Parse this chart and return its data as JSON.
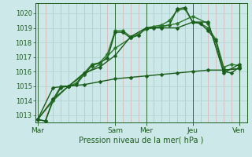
{
  "xlabel": "Pression niveau de la mer( hPa )",
  "background_color": "#cce8e8",
  "grid_color_h": "#b0d0d0",
  "grid_color_v_minor": "#e0b0b0",
  "grid_color_v_major": "#336633",
  "line_color_dark": "#1a5c1a",
  "line_color_mid": "#2d8c2d",
  "tick_labels": [
    "Mar",
    "Sam",
    "Mer",
    "Jeu",
    "Ven"
  ],
  "tick_positions": [
    0,
    10,
    14,
    20,
    26
  ],
  "xlim": [
    -0.3,
    27.0
  ],
  "ylim": [
    1012.5,
    1020.7
  ],
  "yticks": [
    1013,
    1014,
    1015,
    1016,
    1017,
    1018,
    1019,
    1020
  ],
  "series": [
    {
      "x": [
        0,
        1,
        2,
        3,
        4,
        5,
        6,
        7,
        8,
        9,
        10,
        11,
        12,
        13,
        14,
        15,
        16,
        17,
        18,
        19,
        20,
        21,
        22,
        23,
        24,
        25,
        26
      ],
      "y": [
        1012.7,
        1012.6,
        1014.1,
        1015.0,
        1015.0,
        1015.2,
        1015.9,
        1016.5,
        1016.6,
        1017.2,
        1018.8,
        1018.8,
        1018.4,
        1018.5,
        1019.0,
        1019.1,
        1019.2,
        1019.5,
        1020.2,
        1020.3,
        1019.4,
        1019.3,
        1019.0,
        1018.2,
        1016.3,
        1016.5,
        1016.4
      ],
      "color": "#2d7a2d",
      "lw": 1.0
    },
    {
      "x": [
        0,
        1,
        2,
        3,
        4,
        5,
        6,
        7,
        8,
        9,
        10,
        11,
        12,
        13,
        14,
        15,
        16,
        17,
        18,
        19,
        20,
        21,
        22,
        23,
        24,
        25,
        26
      ],
      "y": [
        1012.7,
        1012.6,
        1014.0,
        1014.9,
        1015.0,
        1015.1,
        1015.8,
        1016.4,
        1016.6,
        1016.9,
        1018.7,
        1018.7,
        1018.3,
        1018.5,
        1019.0,
        1019.0,
        1019.1,
        1019.2,
        1020.3,
        1020.4,
        1019.4,
        1019.3,
        1018.8,
        1018.1,
        1016.0,
        1015.9,
        1016.3
      ],
      "color": "#1a5c1a",
      "lw": 1.0
    },
    {
      "x": [
        0,
        2,
        4,
        6,
        8,
        10,
        12,
        14,
        16,
        18,
        20,
        22,
        24,
        26
      ],
      "y": [
        1012.7,
        1014.0,
        1015.0,
        1015.8,
        1016.5,
        1017.6,
        1018.3,
        1018.9,
        1019.1,
        1019.3,
        1019.8,
        1019.3,
        1016.1,
        1016.2
      ],
      "color": "#2d7a2d",
      "lw": 1.0
    },
    {
      "x": [
        0,
        2,
        4,
        6,
        8,
        10,
        12,
        14,
        16,
        18,
        20,
        22,
        24,
        26
      ],
      "y": [
        1012.7,
        1014.1,
        1015.0,
        1015.9,
        1016.3,
        1017.1,
        1018.4,
        1019.0,
        1019.0,
        1019.0,
        1019.4,
        1019.4,
        1015.9,
        1016.5
      ],
      "color": "#1a5c1a",
      "lw": 1.0
    },
    {
      "x": [
        0,
        2,
        4,
        6,
        8,
        10,
        12,
        14,
        16,
        18,
        20,
        22,
        24,
        26
      ],
      "y": [
        1012.7,
        1014.9,
        1015.0,
        1015.1,
        1015.3,
        1015.5,
        1015.6,
        1015.7,
        1015.8,
        1015.9,
        1016.0,
        1016.1,
        1016.1,
        1016.2
      ],
      "color": "#1a5c1a",
      "lw": 1.0
    }
  ],
  "minor_vtick_positions": [
    1,
    2,
    3,
    4,
    5,
    6,
    7,
    8,
    9,
    11,
    12,
    13,
    15,
    16,
    17,
    18,
    19,
    21,
    22,
    23,
    24,
    25
  ]
}
